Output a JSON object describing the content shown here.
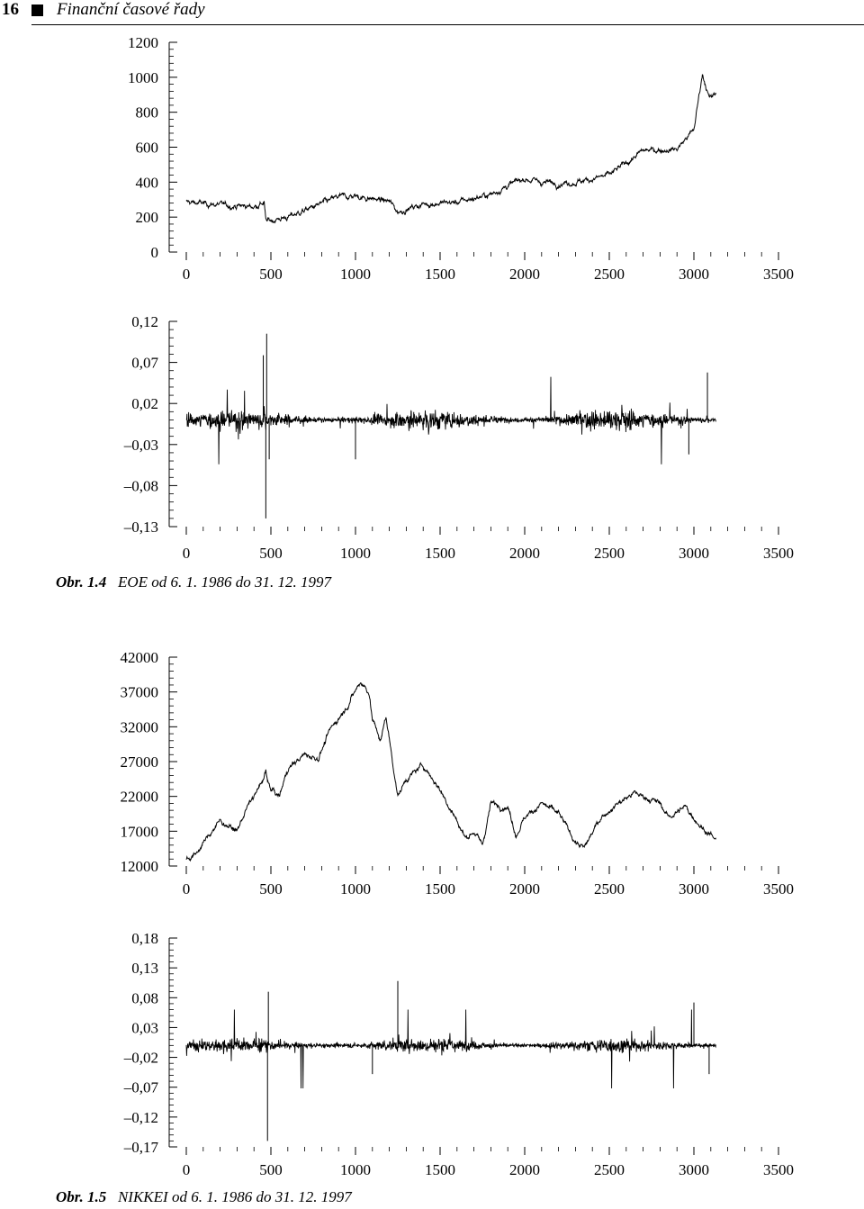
{
  "header": {
    "page_number": "16",
    "running_title": "Finanční časové řady"
  },
  "captions": [
    {
      "label": "Obr. 1.4",
      "text": "EOE od 6. 1. 1986 do 31. 12. 1997"
    },
    {
      "label": "Obr. 1.5",
      "text": "NIKKEI od 6. 1. 1986 do 31. 12. 1997"
    }
  ],
  "chart_data": [
    {
      "type": "line",
      "title": "",
      "xlabel": "",
      "ylabel": "",
      "xlim": [
        0,
        3500
      ],
      "ylim": [
        0,
        1200
      ],
      "x_ticks": [
        "0",
        "500",
        "1000",
        "1500",
        "2000",
        "2500",
        "3000",
        "3500"
      ],
      "y_ticks": [
        "0",
        "200",
        "400",
        "600",
        "800",
        "1000",
        "1200"
      ],
      "n_points": 3130,
      "series": [
        {
          "x": [
            0,
            200,
            400,
            460,
            470,
            600,
            900,
            1000,
            1200,
            1250,
            1400,
            1600,
            1800,
            1900,
            2000,
            2100,
            2200,
            2300,
            2500,
            2700,
            2900,
            3000,
            3050,
            3070,
            3090,
            3130
          ],
          "values": [
            285,
            270,
            260,
            285,
            175,
            200,
            315,
            320,
            290,
            230,
            275,
            285,
            330,
            380,
            420,
            400,
            395,
            400,
            440,
            580,
            590,
            700,
            1020,
            960,
            880,
            900
          ]
        }
      ]
    },
    {
      "type": "line",
      "title": "",
      "xlabel": "",
      "ylabel": "",
      "xlim": [
        0,
        3500
      ],
      "ylim": [
        -0.13,
        0.12
      ],
      "x_ticks": [
        "0",
        "500",
        "1000",
        "1500",
        "2000",
        "2500",
        "3000",
        "3500"
      ],
      "y_ticks": [
        "–0,13",
        "–0,08",
        "–0,03",
        "0,02",
        "0,07",
        "0,12"
      ],
      "n_points": 3130,
      "series": [
        {
          "description_values": "daily log-returns",
          "range": [
            -0.12,
            0.105
          ]
        }
      ]
    },
    {
      "type": "line",
      "title": "",
      "xlabel": "",
      "ylabel": "",
      "xlim": [
        0,
        3500
      ],
      "ylim": [
        12000,
        42000
      ],
      "x_ticks": [
        "0",
        "500",
        "1000",
        "1500",
        "2000",
        "2500",
        "3000",
        "3500"
      ],
      "y_ticks": [
        "12000",
        "17000",
        "22000",
        "27000",
        "32000",
        "37000",
        "42000"
      ],
      "n_points": 3130,
      "series": [
        {
          "x": [
            0,
            50,
            150,
            200,
            300,
            350,
            450,
            470,
            480,
            500,
            550,
            600,
            700,
            780,
            850,
            950,
            1030,
            1080,
            1100,
            1150,
            1180,
            1250,
            1300,
            1400,
            1500,
            1600,
            1650,
            1700,
            1750,
            1800,
            1900,
            1950,
            2000,
            2100,
            2200,
            2300,
            2350,
            2450,
            2550,
            2650,
            2700,
            2800,
            2850,
            2950,
            3000,
            3050,
            3100,
            3130
          ],
          "values": [
            13000,
            13500,
            17000,
            18500,
            17000,
            20000,
            24000,
            26000,
            24000,
            23000,
            22000,
            26000,
            28000,
            27500,
            31500,
            35000,
            38500,
            37000,
            33000,
            30000,
            33500,
            22000,
            24500,
            26500,
            23000,
            18500,
            16000,
            17000,
            15000,
            21000,
            20500,
            16500,
            19000,
            21000,
            19500,
            15500,
            14500,
            19000,
            21000,
            22500,
            22000,
            21000,
            19000,
            20500,
            19000,
            17500,
            16500,
            15500
          ]
        }
      ]
    },
    {
      "type": "line",
      "title": "",
      "xlabel": "",
      "ylabel": "",
      "xlim": [
        0,
        3500
      ],
      "ylim": [
        -0.17,
        0.18
      ],
      "x_ticks": [
        "0",
        "500",
        "1000",
        "1500",
        "2000",
        "2500",
        "3000",
        "3500"
      ],
      "y_ticks": [
        "–0,17",
        "–0,12",
        "–0,07",
        "–0,02",
        "0,03",
        "0,08",
        "0,13",
        "0,18"
      ],
      "n_points": 3130,
      "series": [
        {
          "description_values": "daily log-returns",
          "range": [
            -0.16,
            0.12
          ]
        }
      ]
    }
  ]
}
